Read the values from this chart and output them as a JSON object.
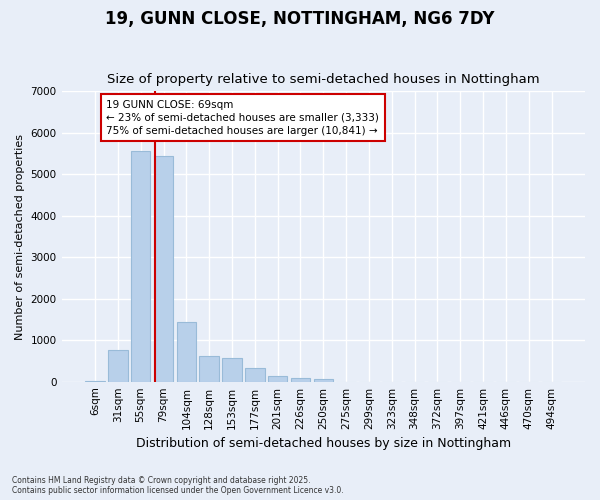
{
  "title": "19, GUNN CLOSE, NOTTINGHAM, NG6 7DY",
  "subtitle": "Size of property relative to semi-detached houses in Nottingham",
  "xlabel": "Distribution of semi-detached houses by size in Nottingham",
  "ylabel": "Number of semi-detached properties",
  "footnote": "Contains HM Land Registry data © Crown copyright and database right 2025.\nContains public sector information licensed under the Open Government Licence v3.0.",
  "categories": [
    "6sqm",
    "31sqm",
    "55sqm",
    "79sqm",
    "104sqm",
    "128sqm",
    "153sqm",
    "177sqm",
    "201sqm",
    "226sqm",
    "250sqm",
    "275sqm",
    "299sqm",
    "323sqm",
    "348sqm",
    "372sqm",
    "397sqm",
    "421sqm",
    "446sqm",
    "470sqm",
    "494sqm"
  ],
  "bar_values": [
    20,
    770,
    5550,
    5450,
    1430,
    620,
    580,
    320,
    145,
    80,
    70,
    0,
    0,
    0,
    0,
    0,
    0,
    0,
    0,
    0,
    0
  ],
  "bar_color": "#b8d0ea",
  "bar_edgecolor": "#99bbd8",
  "bar_linewidth": 0.8,
  "background_color": "#e8eef8",
  "grid_color": "#ffffff",
  "vline_x": 2.62,
  "vline_color": "#cc0000",
  "annotation_text": "19 GUNN CLOSE: 69sqm\n← 23% of semi-detached houses are smaller (3,333)\n75% of semi-detached houses are larger (10,841) →",
  "ylim": [
    0,
    7000
  ],
  "yticks": [
    0,
    1000,
    2000,
    3000,
    4000,
    5000,
    6000,
    7000
  ],
  "title_fontsize": 12,
  "subtitle_fontsize": 9.5,
  "ylabel_fontsize": 8,
  "xlabel_fontsize": 9,
  "tick_fontsize": 7.5,
  "annot_fontsize": 7.5
}
